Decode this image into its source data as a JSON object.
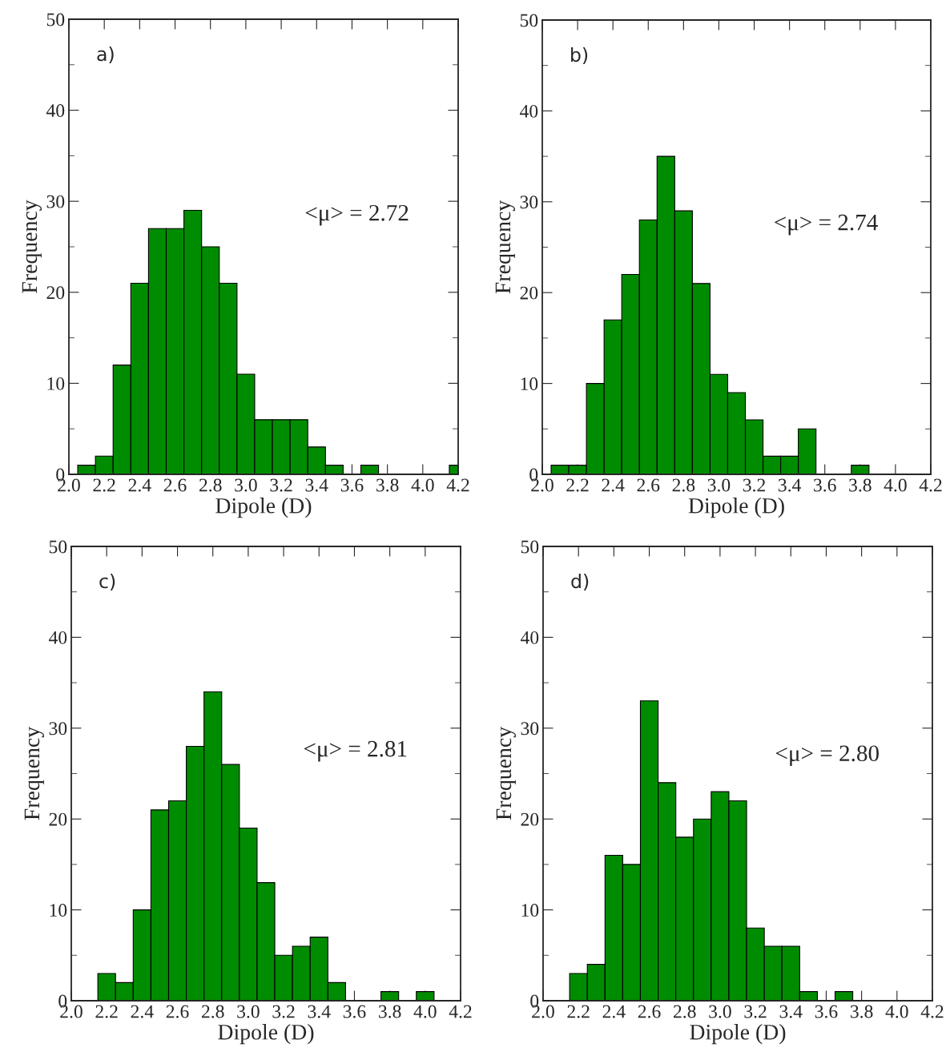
{
  "chart_data": [
    {
      "type": "histogram",
      "xlabel": "Dipole (D)",
      "ylabel": "Frequency",
      "color": "#008c00",
      "bins": [
        2.05,
        2.15,
        2.25,
        2.35,
        2.45,
        2.55,
        2.65,
        2.75,
        2.85,
        2.95,
        3.05,
        3.15,
        3.25,
        3.35,
        3.45,
        3.55,
        3.65,
        3.75,
        4.15,
        4.2
      ],
      "values": [
        1,
        2,
        12,
        21,
        27,
        27,
        29,
        25,
        21,
        11,
        6,
        6,
        6,
        3,
        1,
        0,
        1,
        0,
        1
      ],
      "xlim": [
        2.0,
        4.2
      ],
      "ylim": [
        0,
        50
      ],
      "xticks": [
        {
          "value": 2.0,
          "label": "2.0"
        },
        {
          "value": 2.2,
          "label": "2.2"
        },
        {
          "value": 2.4,
          "label": "2.4"
        },
        {
          "value": 2.6,
          "label": "2.6"
        },
        {
          "value": 2.8,
          "label": "2.8"
        },
        {
          "value": 3.0,
          "label": "3.0"
        },
        {
          "value": 3.2,
          "label": "3.2"
        },
        {
          "value": 3.4,
          "label": "3.4"
        },
        {
          "value": 3.6,
          "label": "3.6"
        },
        {
          "value": 3.8,
          "label": "3.8"
        },
        {
          "value": 4.0,
          "label": "4.0"
        },
        {
          "value": 4.2,
          "label": "4.2"
        }
      ],
      "yticks": [
        0,
        10,
        20,
        30,
        40,
        50
      ],
      "grid": false,
      "annotations": [
        "a)",
        "<μ> = 2.72"
      ]
    },
    {
      "type": "histogram",
      "xlabel": "Dipole (D)",
      "ylabel": "Frequency",
      "color": "#008c00",
      "bins": [
        2.05,
        2.15,
        2.25,
        2.35,
        2.45,
        2.55,
        2.65,
        2.75,
        2.85,
        2.95,
        3.05,
        3.15,
        3.25,
        3.35,
        3.45,
        3.55,
        3.75,
        3.85
      ],
      "values": [
        1,
        1,
        10,
        17,
        22,
        28,
        35,
        29,
        21,
        11,
        9,
        6,
        2,
        2,
        5,
        0,
        1
      ],
      "xlim": [
        2.0,
        4.2
      ],
      "ylim": [
        0,
        50
      ],
      "xticks": [
        {
          "value": 2.0,
          "label": "2.0"
        },
        {
          "value": 2.2,
          "label": "2.2"
        },
        {
          "value": 2.4,
          "label": "2.4"
        },
        {
          "value": 2.6,
          "label": "2.6"
        },
        {
          "value": 2.8,
          "label": "2.8"
        },
        {
          "value": 3.0,
          "label": "3.0"
        },
        {
          "value": 3.2,
          "label": "3.2"
        },
        {
          "value": 3.4,
          "label": "3.4"
        },
        {
          "value": 3.6,
          "label": "3.6"
        },
        {
          "value": 3.8,
          "label": "3.8"
        },
        {
          "value": 4.0,
          "label": "4.0"
        },
        {
          "value": 4.2,
          "label": "4.2"
        }
      ],
      "yticks": [
        0,
        10,
        20,
        30,
        40,
        50
      ],
      "grid": false,
      "annotations": [
        "b)",
        "<μ> = 2.74"
      ]
    },
    {
      "type": "histogram",
      "xlabel": "Dipole (D)",
      "ylabel": "Frequency",
      "color": "#008c00",
      "bins": [
        2.15,
        2.25,
        2.35,
        2.45,
        2.55,
        2.65,
        2.75,
        2.85,
        2.95,
        3.05,
        3.15,
        3.25,
        3.35,
        3.45,
        3.55,
        3.75,
        3.85,
        3.95,
        4.05
      ],
      "values": [
        3,
        2,
        10,
        21,
        22,
        28,
        34,
        26,
        19,
        13,
        5,
        6,
        7,
        2,
        0,
        1,
        0,
        1
      ],
      "xlim": [
        2.0,
        4.2
      ],
      "ylim": [
        0,
        50
      ],
      "xticks": [
        {
          "value": 2.0,
          "label": "2.0"
        },
        {
          "value": 2.2,
          "label": "2.2"
        },
        {
          "value": 2.4,
          "label": "2.4"
        },
        {
          "value": 2.6,
          "label": "2.6"
        },
        {
          "value": 2.8,
          "label": "2.8"
        },
        {
          "value": 3.0,
          "label": "3.0"
        },
        {
          "value": 3.2,
          "label": "3.2"
        },
        {
          "value": 3.4,
          "label": "3.4"
        },
        {
          "value": 3.6,
          "label": "3.6"
        },
        {
          "value": 3.8,
          "label": "3.8"
        },
        {
          "value": 4.0,
          "label": "4.0"
        },
        {
          "value": 4.2,
          "label": "4.2"
        }
      ],
      "yticks": [
        0,
        10,
        20,
        30,
        40,
        50
      ],
      "grid": false,
      "annotations": [
        "c)",
        "<μ> = 2.81"
      ]
    },
    {
      "type": "histogram",
      "xlabel": "Dipole (D)",
      "ylabel": "Frequency",
      "color": "#008c00",
      "bins": [
        2.15,
        2.25,
        2.35,
        2.45,
        2.55,
        2.65,
        2.75,
        2.85,
        2.95,
        3.05,
        3.15,
        3.25,
        3.35,
        3.45,
        3.55,
        3.65,
        3.75
      ],
      "values": [
        3,
        4,
        16,
        15,
        33,
        24,
        18,
        20,
        23,
        22,
        8,
        6,
        6,
        1,
        0,
        1
      ],
      "xlim": [
        2.0,
        4.2
      ],
      "ylim": [
        0,
        50
      ],
      "xticks": [
        {
          "value": 2.0,
          "label": "2.0"
        },
        {
          "value": 2.2,
          "label": "2.2"
        },
        {
          "value": 2.4,
          "label": "2.4"
        },
        {
          "value": 2.6,
          "label": "2.6"
        },
        {
          "value": 2.8,
          "label": "2.8"
        },
        {
          "value": 3.0,
          "label": "3.0"
        },
        {
          "value": 3.2,
          "label": "3.2"
        },
        {
          "value": 3.4,
          "label": "3.4"
        },
        {
          "value": 3.6,
          "label": "3.6"
        },
        {
          "value": 3.8,
          "label": "3.8"
        },
        {
          "value": 4.0,
          "label": "4.0"
        },
        {
          "value": 4.2,
          "label": "4.2"
        }
      ],
      "yticks": [
        0,
        10,
        20,
        30,
        40,
        50
      ],
      "grid": false,
      "annotations": [
        "d)",
        "<μ> = 2.80"
      ]
    }
  ]
}
